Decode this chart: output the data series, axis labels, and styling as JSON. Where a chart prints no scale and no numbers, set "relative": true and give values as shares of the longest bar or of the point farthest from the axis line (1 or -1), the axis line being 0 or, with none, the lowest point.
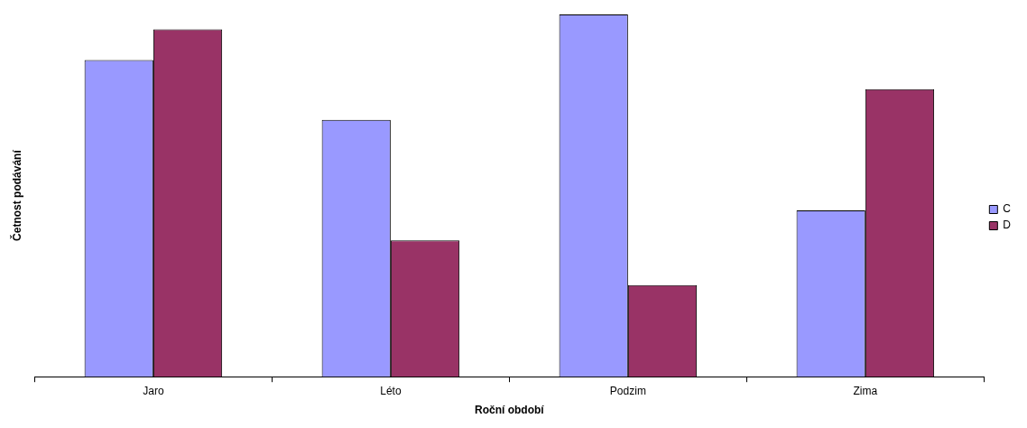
{
  "chart_data": {
    "type": "bar",
    "relative": true,
    "xlabel": "Roční období",
    "ylabel": "Četnost podávání",
    "categories": [
      "Jaro",
      "Léto",
      "Podzim",
      "Zima"
    ],
    "series": [
      {
        "name": "C",
        "color": "#9999ff",
        "values": [
          0.874,
          0.709,
          1,
          0.459
        ]
      },
      {
        "name": "D",
        "color": "#993366",
        "values": [
          0.959,
          0.376,
          0.253,
          0.794
        ]
      }
    ],
    "legend": "right"
  }
}
